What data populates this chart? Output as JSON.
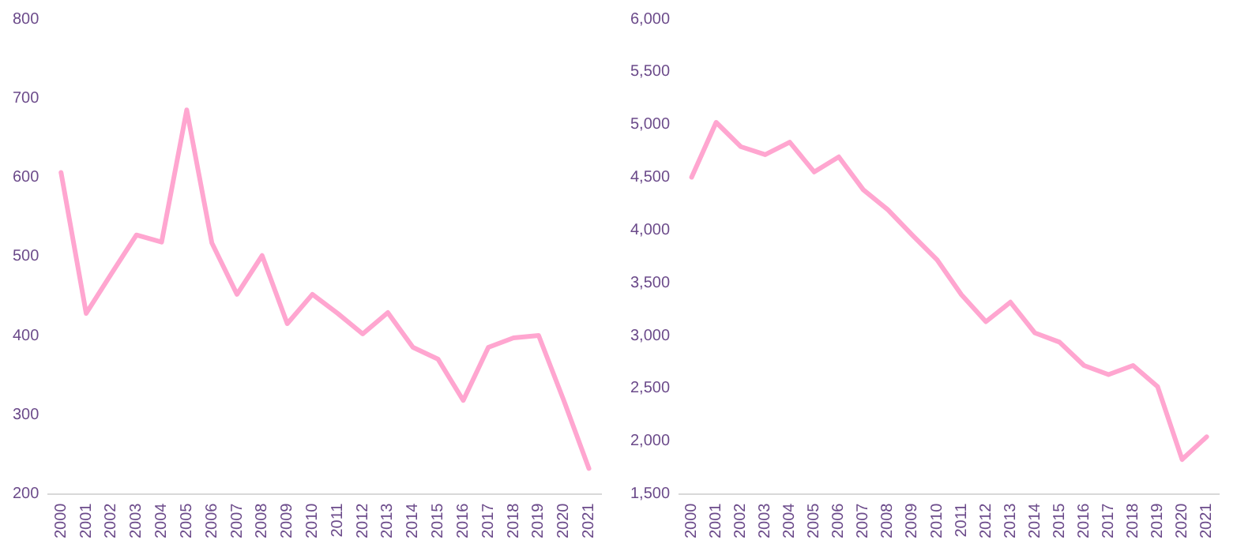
{
  "chart_data": [
    {
      "type": "line",
      "categories": [
        "2000",
        "2001",
        "2002",
        "2003",
        "2004",
        "2005",
        "2006",
        "2007",
        "2008",
        "2009",
        "2010",
        "2011",
        "2012",
        "2013",
        "2014",
        "2015",
        "2016",
        "2017",
        "2018",
        "2019",
        "2020",
        "2021"
      ],
      "series": [
        {
          "color": "#ffa6d0",
          "values": [
            606,
            428,
            478,
            527,
            518,
            685,
            517,
            452,
            501,
            415,
            452,
            428,
            402,
            429,
            385,
            370,
            318,
            385,
            397,
            400,
            318,
            232
          ]
        }
      ],
      "ylim": [
        200,
        800
      ],
      "yticks": [
        200,
        300,
        400,
        500,
        600,
        700,
        800
      ],
      "grid": false,
      "legend": false,
      "marker": "none",
      "line_style": "solid"
    },
    {
      "type": "line",
      "categories": [
        "2000",
        "2001",
        "2002",
        "2003",
        "2004",
        "2005",
        "2006",
        "2007",
        "2008",
        "2009",
        "2010",
        "2011",
        "2012",
        "2013",
        "2014",
        "2015",
        "2016",
        "2017",
        "2018",
        "2019",
        "2020",
        "2021"
      ],
      "series": [
        {
          "color": "#ffa6d0",
          "values": [
            4500,
            5020,
            4790,
            4714,
            4832,
            4550,
            4693,
            4381,
            4192,
            3951,
            3720,
            3387,
            3131,
            3316,
            3024,
            2937,
            2716,
            2630,
            2716,
            2516,
            1825,
            2040
          ]
        }
      ],
      "ylim": [
        1500,
        6000
      ],
      "yticks": [
        {
          "value": 1500,
          "label": "1,500"
        },
        {
          "value": 2000,
          "label": "2,000"
        },
        {
          "value": 2500,
          "label": "2,500"
        },
        {
          "value": 3000,
          "label": "3,000"
        },
        {
          "value": 3500,
          "label": "3,500"
        },
        {
          "value": 4000,
          "label": "4,000"
        },
        {
          "value": 4500,
          "label": "4,500"
        },
        {
          "value": 5000,
          "label": "5,000"
        },
        {
          "value": 5500,
          "label": "5,500"
        },
        {
          "value": 6000,
          "label": "6,000"
        }
      ],
      "grid": false,
      "legend": false,
      "marker": "none",
      "line_style": "solid"
    }
  ]
}
